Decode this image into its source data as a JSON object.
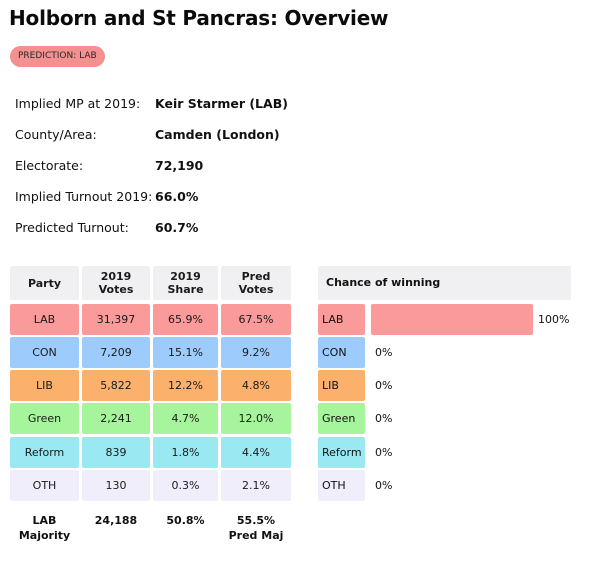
{
  "title": "Holborn and St Pancras: Overview",
  "prediction_badge": "PREDICTION: LAB",
  "info": [
    {
      "label": "Implied MP at 2019:",
      "value": "Keir Starmer  (LAB)"
    },
    {
      "label": "County/Area:",
      "value": "Camden (London)"
    },
    {
      "label": "Electorate:",
      "value": "72,190"
    },
    {
      "label": "Implied Turnout 2019:",
      "value": "66.0%"
    },
    {
      "label": "Predicted Turnout:",
      "value": "60.7%"
    }
  ],
  "table": {
    "headers": [
      "Party",
      "2019\nVotes",
      "2019\nShare",
      "Pred\nVotes"
    ],
    "rows": [
      {
        "party": "LAB",
        "votes": "31,397",
        "share": "65.9%",
        "pred": "67.5%",
        "color": "#fb9a9a"
      },
      {
        "party": "CON",
        "votes": "7,209",
        "share": "15.1%",
        "pred": "9.2%",
        "color": "#9dcbfc"
      },
      {
        "party": "LIB",
        "votes": "5,822",
        "share": "12.2%",
        "pred": "4.8%",
        "color": "#fbb16b"
      },
      {
        "party": "Green",
        "votes": "2,241",
        "share": "4.7%",
        "pred": "12.0%",
        "color": "#a6f59c"
      },
      {
        "party": "Reform",
        "votes": "839",
        "share": "1.8%",
        "pred": "4.4%",
        "color": "#9ae9f2"
      },
      {
        "party": "OTH",
        "votes": "130",
        "share": "0.3%",
        "pred": "2.1%",
        "color": "#f1eefb"
      }
    ],
    "footer": {
      "party": "LAB\nMajority",
      "votes": "24,188",
      "share": "50.8%",
      "pred": "55.5%\nPred Maj"
    }
  },
  "chance": {
    "header": "Chance of winning",
    "rows": [
      {
        "party": "LAB",
        "pct": "100%",
        "value": 1.0
      },
      {
        "party": "CON",
        "pct": "0%",
        "value": 0
      },
      {
        "party": "LIB",
        "pct": "0%",
        "value": 0
      },
      {
        "party": "Green",
        "pct": "0%",
        "value": 0
      },
      {
        "party": "Reform",
        "pct": "0%",
        "value": 0
      },
      {
        "party": "OTH",
        "pct": "0%",
        "value": 0
      }
    ]
  }
}
